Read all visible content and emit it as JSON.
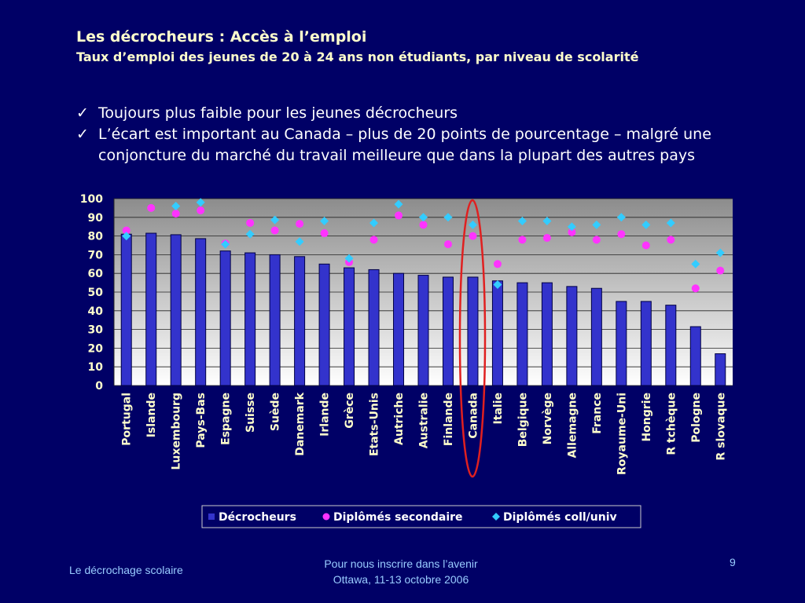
{
  "header": {
    "title": "Les décrocheurs : Accès à l’emploi",
    "subtitle": "Taux d’emploi des jeunes de 20 à 24 ans non étudiants, par niveau de scolarité"
  },
  "bullets": [
    "Toujours plus faible pour les jeunes décrocheurs",
    "L’écart est important au Canada – plus de 20 points de pourcentage – malgré une conjoncture du marché du travail meilleure que dans la plupart des autres pays"
  ],
  "chart_data": {
    "type": "bar",
    "categories": [
      "Portugal",
      "Islande",
      "Luxembourg",
      "Pays-Bas",
      "Espagne",
      "Suisse",
      "Suède",
      "Danemark",
      "Irlande",
      "Grèce",
      "Etats-Unis",
      "Autriche",
      "Australie",
      "Finlande",
      "Canada",
      "Italie",
      "Belgique",
      "Norvège",
      "Allemagne",
      "France",
      "Royaume-Uni",
      "Hongrie",
      "R tchèque",
      "Pologne",
      "R slovaque"
    ],
    "series": [
      {
        "name": "Décrocheurs",
        "type": "bar",
        "color": "#3333cc",
        "values": [
          81,
          81.5,
          80.7,
          78.6,
          72,
          71,
          70,
          69,
          65,
          63,
          62,
          60,
          59,
          58,
          58,
          56,
          55,
          55,
          53,
          52,
          45,
          45,
          43,
          31.5,
          17
        ]
      },
      {
        "name": "Diplômés secondaire",
        "type": "circle",
        "color": "#ff33ff",
        "values": [
          83,
          95,
          92,
          93.7,
          76,
          87,
          83,
          86.5,
          81.5,
          66,
          78,
          91,
          86,
          75.6,
          80,
          65,
          78,
          79,
          82,
          78,
          81,
          75,
          78,
          52,
          61.5
        ]
      },
      {
        "name": "Diplômés coll/univ",
        "type": "diamond",
        "color": "#33ccff",
        "values": [
          80,
          null,
          96,
          98,
          75.6,
          81,
          88.6,
          77,
          88,
          68,
          87,
          97,
          90,
          90,
          86,
          54,
          88,
          88,
          85,
          86,
          90,
          86,
          87,
          65,
          71
        ]
      }
    ],
    "ylim": [
      0,
      100
    ],
    "yticks": [
      0,
      10,
      20,
      30,
      40,
      50,
      60,
      70,
      80,
      90,
      100
    ],
    "grid": true,
    "legend": "bottom"
  },
  "footer": {
    "left": "Le décrochage scolaire",
    "center": [
      "Pour nous inscrire dans l’avenir",
      "Ottawa, 11-13 octobre 2006"
    ],
    "page": "9"
  }
}
